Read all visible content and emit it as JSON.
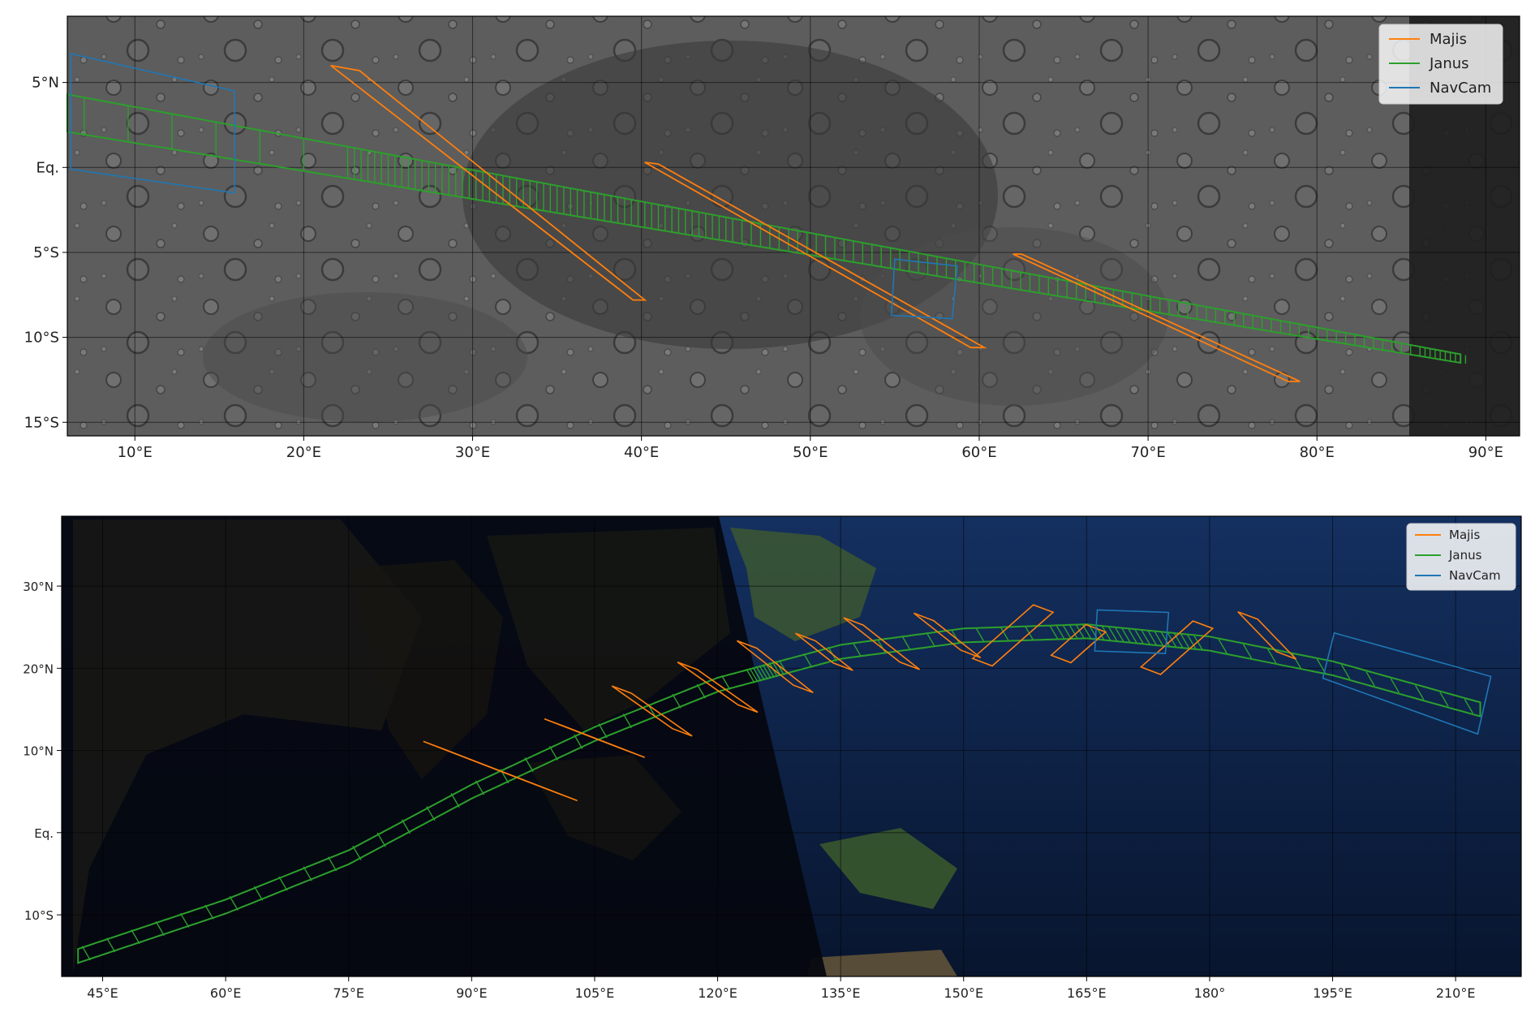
{
  "panels": [
    {
      "id": "moon",
      "xlim": [
        6,
        92
      ],
      "ylim": [
        -15.8,
        8.9
      ],
      "xticks": [
        {
          "v": 10,
          "label": "10°E"
        },
        {
          "v": 20,
          "label": "20°E"
        },
        {
          "v": 30,
          "label": "30°E"
        },
        {
          "v": 40,
          "label": "40°E"
        },
        {
          "v": 50,
          "label": "50°E"
        },
        {
          "v": 60,
          "label": "60°E"
        },
        {
          "v": 70,
          "label": "70°E"
        },
        {
          "v": 80,
          "label": "80°E"
        },
        {
          "v": 90,
          "label": "90°E"
        }
      ],
      "yticks": [
        {
          "v": 5,
          "label": "5°N"
        },
        {
          "v": 0,
          "label": "Eq."
        },
        {
          "v": -5,
          "label": "5°S"
        },
        {
          "v": -10,
          "label": "10°S"
        },
        {
          "v": -15,
          "label": "15°S"
        }
      ],
      "legend": {
        "position": "top-right",
        "entries": [
          {
            "label": "Majis",
            "color": "#ff7f0e"
          },
          {
            "label": "Janus",
            "color": "#2ca02c"
          },
          {
            "label": "NavCam",
            "color": "#1f77b4"
          }
        ]
      },
      "background": {
        "style": "lunar-surface",
        "color": "#5c5c5c",
        "dark_edge_lon": 85.5
      },
      "janus_track": {
        "lon_start": 6,
        "lon_end": 88.8,
        "center_start": 3.2,
        "center_end": -11.3,
        "width_start": 2.2,
        "width_end": 0.5
      },
      "majis_swaths": [
        [
          [
            21.6,
            6.0
          ],
          [
            23.3,
            5.7
          ],
          [
            40.2,
            -7.8
          ],
          [
            39.5,
            -7.8
          ]
        ],
        [
          [
            40.2,
            0.3
          ],
          [
            41.0,
            0.2
          ],
          [
            60.3,
            -10.6
          ],
          [
            59.5,
            -10.6
          ]
        ],
        [
          [
            62.0,
            -5.1
          ],
          [
            62.5,
            -5.1
          ],
          [
            79.0,
            -12.6
          ],
          [
            78.3,
            -12.6
          ]
        ]
      ],
      "navcam_footprints": [
        [
          [
            6.2,
            6.7
          ],
          [
            15.9,
            4.5
          ],
          [
            15.9,
            -1.5
          ],
          [
            6.2,
            -0.1
          ]
        ],
        [
          [
            55.0,
            -5.4
          ],
          [
            58.7,
            -5.8
          ],
          [
            58.4,
            -8.9
          ],
          [
            54.8,
            -8.7
          ]
        ]
      ]
    },
    {
      "id": "earth",
      "xlim": [
        40,
        218
      ],
      "ylim": [
        -17.5,
        38.5
      ],
      "xticks": [
        {
          "v": 45,
          "label": "45°E"
        },
        {
          "v": 60,
          "label": "60°E"
        },
        {
          "v": 75,
          "label": "75°E"
        },
        {
          "v": 90,
          "label": "90°E"
        },
        {
          "v": 105,
          "label": "105°E"
        },
        {
          "v": 120,
          "label": "120°E"
        },
        {
          "v": 135,
          "label": "135°E"
        },
        {
          "v": 150,
          "label": "150°E"
        },
        {
          "v": 165,
          "label": "165°E"
        },
        {
          "v": 180,
          "label": "180°"
        },
        {
          "v": 195,
          "label": "195°E"
        },
        {
          "v": 210,
          "label": "210°E"
        }
      ],
      "yticks": [
        {
          "v": 30,
          "label": "30°N"
        },
        {
          "v": 20,
          "label": "20°N"
        },
        {
          "v": 10,
          "label": "10°N"
        },
        {
          "v": 0,
          "label": "Eq."
        },
        {
          "v": -10,
          "label": "10°S"
        }
      ],
      "legend": {
        "position": "top-right",
        "entries": [
          {
            "label": "Majis",
            "color": "#ff7f0e"
          },
          {
            "label": "Janus",
            "color": "#2ca02c"
          },
          {
            "label": "NavCam",
            "color": "#1f77b4"
          }
        ]
      },
      "background": {
        "style": "earth-night-day",
        "night_color": "#05080f",
        "ocean_color": "#0a1a3a",
        "terminator": [
          [
            120,
            38.5
          ],
          [
            133,
            -17.5
          ]
        ]
      },
      "janus_track": {
        "points": [
          [
            42,
            -15
          ],
          [
            60,
            -9
          ],
          [
            75,
            -3
          ],
          [
            90,
            5
          ],
          [
            105,
            12
          ],
          [
            120,
            18
          ],
          [
            135,
            22
          ],
          [
            150,
            24
          ],
          [
            165,
            24.5
          ],
          [
            180,
            23
          ],
          [
            195,
            20
          ],
          [
            213,
            15
          ]
        ],
        "width": 1.7
      },
      "majis_swaths": [
        {
          "lon": 93.5,
          "lat": 7.5,
          "angle": -35,
          "length": 20
        },
        {
          "lon": 105,
          "lat": 11.5,
          "angle": -35,
          "length": 12
        },
        {
          "lon": 112,
          "lat": 14.8,
          "angle": -52,
          "length": 12
        },
        {
          "lon": 120,
          "lat": 17.7,
          "angle": -52,
          "length": 12
        },
        {
          "lon": 127,
          "lat": 20.2,
          "angle": -55,
          "length": 12
        },
        {
          "lon": 133,
          "lat": 22.0,
          "angle": -55,
          "length": 8
        },
        {
          "lon": 140,
          "lat": 23.0,
          "angle": -55,
          "length": 12
        },
        {
          "lon": 148,
          "lat": 24.0,
          "angle": -55,
          "length": 10
        },
        {
          "lon": 156,
          "lat": 24.0,
          "angle": 58,
          "length": 14
        },
        {
          "lon": 164,
          "lat": 23.0,
          "angle": 58,
          "length": 8
        },
        {
          "lon": 176,
          "lat": 22.5,
          "angle": 58,
          "length": 12
        },
        {
          "lon": 187,
          "lat": 24.0,
          "angle": -62,
          "length": 10
        }
      ],
      "navcam_footprints": [
        [
          [
            166.3,
            27.1
          ],
          [
            175.0,
            26.8
          ],
          [
            174.6,
            21.8
          ],
          [
            166.0,
            22.1
          ]
        ],
        [
          [
            195.2,
            24.3
          ],
          [
            214.3,
            19.0
          ],
          [
            212.7,
            12.0
          ],
          [
            193.8,
            18.8
          ]
        ]
      ]
    }
  ]
}
